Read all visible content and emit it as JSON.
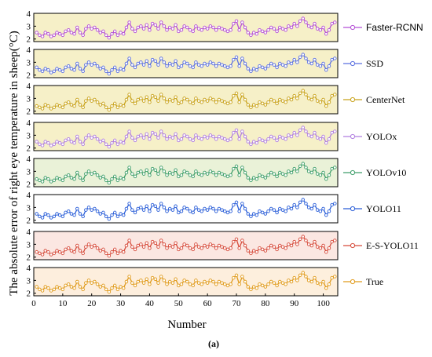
{
  "caption": "(a)",
  "chart_data": {
    "type": "line",
    "layout": "stacked-panels",
    "xlabel": "Number",
    "ylabel": "The absolute error of right eye temperature in sheep(°C)",
    "xlim": [
      0,
      105
    ],
    "ylim": [
      1.8,
      4
    ],
    "x_ticks": [
      0,
      10,
      20,
      30,
      40,
      50,
      60,
      70,
      80,
      90,
      100
    ],
    "y_ticks": [
      2,
      3,
      4
    ],
    "legend_placement": "right of each panel",
    "grid": false,
    "x": [
      1,
      2,
      3,
      4,
      5,
      6,
      7,
      8,
      9,
      10,
      11,
      12,
      13,
      14,
      15,
      16,
      17,
      18,
      19,
      20,
      21,
      22,
      23,
      24,
      25,
      26,
      27,
      28,
      29,
      30,
      31,
      32,
      33,
      34,
      35,
      36,
      37,
      38,
      39,
      40,
      41,
      42,
      43,
      44,
      45,
      46,
      47,
      48,
      49,
      50,
      51,
      52,
      53,
      54,
      55,
      56,
      57,
      58,
      59,
      60,
      61,
      62,
      63,
      64,
      65,
      66,
      67,
      68,
      69,
      70,
      71,
      72,
      73,
      74,
      75,
      76,
      77,
      78,
      79,
      80,
      81,
      82,
      83,
      84,
      85,
      86,
      87,
      88,
      89,
      90,
      91,
      92,
      93,
      94,
      95,
      96,
      97,
      98,
      99,
      100,
      101,
      102,
      103,
      104
    ],
    "series": [
      {
        "name": "Faster-RCNN",
        "color": "#b44fd6",
        "band": "#f6f0c8",
        "values": [
          2.5,
          2.3,
          2.2,
          2.5,
          2.4,
          2.2,
          2.3,
          2.5,
          2.4,
          2.3,
          2.6,
          2.7,
          2.5,
          2.4,
          2.9,
          2.5,
          2.3,
          2.8,
          3.0,
          2.8,
          2.9,
          2.7,
          2.5,
          2.6,
          2.3,
          2.1,
          2.4,
          2.6,
          2.3,
          2.5,
          2.4,
          2.9,
          3.3,
          2.8,
          2.6,
          2.9,
          3.0,
          2.8,
          3.1,
          2.7,
          3.2,
          3.1,
          2.8,
          3.3,
          3.0,
          2.7,
          2.9,
          2.8,
          3.1,
          2.6,
          2.7,
          3.0,
          2.9,
          2.7,
          2.6,
          3.0,
          2.8,
          2.7,
          2.9,
          2.8,
          3.0,
          2.9,
          2.7,
          2.9,
          2.8,
          2.7,
          2.6,
          2.7,
          3.2,
          3.4,
          2.7,
          3.3,
          2.9,
          2.5,
          2.3,
          2.5,
          2.4,
          2.7,
          2.6,
          2.5,
          2.7,
          2.9,
          2.8,
          2.6,
          2.9,
          2.8,
          2.7,
          3.0,
          2.9,
          3.2,
          3.0,
          3.4,
          3.6,
          3.3,
          3.0,
          2.9,
          3.2,
          2.8,
          2.7,
          2.9,
          2.4,
          2.7,
          3.2,
          3.3
        ]
      },
      {
        "name": "SSD",
        "color": "#5a6fe0",
        "band": "#f6f0c8",
        "values": [
          2.6,
          2.4,
          2.3,
          2.5,
          2.4,
          2.2,
          2.3,
          2.5,
          2.4,
          2.3,
          2.6,
          2.7,
          2.5,
          2.4,
          2.9,
          2.5,
          2.3,
          2.8,
          3.0,
          2.8,
          2.9,
          2.7,
          2.5,
          2.6,
          2.3,
          2.1,
          2.4,
          2.6,
          2.3,
          2.5,
          2.4,
          2.9,
          3.3,
          2.8,
          2.6,
          2.9,
          3.0,
          2.8,
          3.1,
          2.7,
          3.2,
          3.1,
          2.8,
          3.3,
          3.0,
          2.7,
          2.9,
          2.8,
          3.1,
          2.6,
          2.7,
          3.0,
          2.9,
          2.7,
          2.6,
          3.0,
          2.8,
          2.7,
          2.9,
          2.8,
          3.0,
          2.9,
          2.7,
          2.9,
          2.8,
          2.7,
          2.6,
          2.7,
          3.2,
          3.4,
          2.7,
          3.3,
          2.9,
          2.5,
          2.3,
          2.5,
          2.4,
          2.7,
          2.6,
          2.5,
          2.7,
          2.9,
          2.8,
          2.6,
          2.9,
          2.8,
          2.7,
          3.0,
          2.9,
          3.2,
          3.0,
          3.4,
          3.6,
          3.3,
          3.0,
          2.9,
          3.2,
          2.8,
          2.7,
          2.9,
          2.4,
          2.7,
          3.2,
          3.3
        ]
      },
      {
        "name": "CenterNet",
        "color": "#c8a21a",
        "band": "#f6f0c8",
        "values": [
          2.4,
          2.3,
          2.2,
          2.5,
          2.4,
          2.2,
          2.3,
          2.5,
          2.4,
          2.3,
          2.6,
          2.7,
          2.5,
          2.4,
          2.9,
          2.5,
          2.3,
          2.8,
          3.0,
          2.8,
          2.9,
          2.7,
          2.5,
          2.6,
          2.3,
          2.1,
          2.4,
          2.6,
          2.3,
          2.5,
          2.4,
          2.9,
          3.3,
          2.8,
          2.6,
          2.9,
          3.0,
          2.8,
          3.1,
          2.7,
          3.2,
          3.1,
          2.8,
          3.3,
          3.0,
          2.7,
          2.9,
          2.8,
          3.1,
          2.6,
          2.7,
          3.0,
          2.9,
          2.7,
          2.6,
          3.0,
          2.8,
          2.7,
          2.9,
          2.8,
          3.0,
          2.9,
          2.7,
          2.9,
          2.8,
          2.7,
          2.6,
          2.7,
          3.2,
          3.4,
          2.7,
          3.3,
          2.9,
          2.5,
          2.3,
          2.5,
          2.4,
          2.7,
          2.6,
          2.5,
          2.7,
          2.9,
          2.8,
          2.6,
          2.9,
          2.8,
          2.7,
          3.0,
          2.9,
          3.2,
          3.0,
          3.4,
          3.6,
          3.3,
          3.0,
          2.9,
          3.2,
          2.8,
          2.7,
          2.9,
          2.4,
          2.7,
          3.2,
          3.3
        ]
      },
      {
        "name": "YOLOx",
        "color": "#b07ee0",
        "band": "#f6f0c8",
        "values": [
          2.5,
          2.3,
          2.2,
          2.5,
          2.4,
          2.2,
          2.3,
          2.5,
          2.4,
          2.3,
          2.6,
          2.7,
          2.5,
          2.4,
          2.9,
          2.5,
          2.3,
          2.8,
          3.0,
          2.8,
          2.9,
          2.7,
          2.5,
          2.6,
          2.3,
          2.1,
          2.4,
          2.6,
          2.3,
          2.5,
          2.4,
          2.9,
          3.3,
          2.8,
          2.6,
          2.9,
          3.0,
          2.8,
          3.1,
          2.7,
          3.2,
          3.1,
          2.8,
          3.3,
          3.0,
          2.7,
          2.9,
          2.8,
          3.1,
          2.6,
          2.7,
          3.0,
          2.9,
          2.7,
          2.6,
          3.0,
          2.8,
          2.7,
          2.9,
          2.8,
          3.0,
          2.9,
          2.7,
          2.9,
          2.8,
          2.7,
          2.6,
          2.7,
          3.2,
          3.4,
          2.7,
          3.3,
          2.9,
          2.5,
          2.3,
          2.5,
          2.4,
          2.7,
          2.6,
          2.5,
          2.7,
          2.9,
          2.8,
          2.6,
          2.9,
          2.8,
          2.7,
          3.0,
          2.9,
          3.2,
          3.0,
          3.4,
          3.6,
          3.3,
          3.0,
          2.9,
          3.2,
          2.8,
          2.7,
          2.9,
          2.4,
          2.7,
          3.2,
          3.3
        ]
      },
      {
        "name": "YOLOv10",
        "color": "#3e9e6a",
        "band": "#eaf2d8",
        "values": [
          2.4,
          2.3,
          2.2,
          2.5,
          2.4,
          2.2,
          2.3,
          2.5,
          2.4,
          2.3,
          2.6,
          2.7,
          2.5,
          2.4,
          2.9,
          2.5,
          2.3,
          2.8,
          3.0,
          2.8,
          2.9,
          2.7,
          2.5,
          2.6,
          2.3,
          2.1,
          2.4,
          2.6,
          2.3,
          2.5,
          2.4,
          2.9,
          3.3,
          2.8,
          2.6,
          2.9,
          3.0,
          2.8,
          3.1,
          2.7,
          3.2,
          3.1,
          2.8,
          3.3,
          3.0,
          2.7,
          2.9,
          2.8,
          3.1,
          2.6,
          2.7,
          3.0,
          2.9,
          2.7,
          2.6,
          3.0,
          2.8,
          2.7,
          2.9,
          2.8,
          3.0,
          2.9,
          2.7,
          2.9,
          2.8,
          2.7,
          2.6,
          2.7,
          3.2,
          3.4,
          2.7,
          3.3,
          2.9,
          2.5,
          2.3,
          2.5,
          2.4,
          2.7,
          2.6,
          2.5,
          2.7,
          2.9,
          2.8,
          2.6,
          2.9,
          2.8,
          2.7,
          3.0,
          2.9,
          3.2,
          3.0,
          3.4,
          3.6,
          3.3,
          3.0,
          2.9,
          3.2,
          2.8,
          2.7,
          2.9,
          2.4,
          2.7,
          3.2,
          3.3
        ]
      },
      {
        "name": "YOLO11",
        "color": "#2a5ed8",
        "band": "#ffffff",
        "values": [
          2.5,
          2.3,
          2.2,
          2.5,
          2.4,
          2.2,
          2.3,
          2.5,
          2.4,
          2.3,
          2.6,
          2.7,
          2.5,
          2.4,
          2.9,
          2.5,
          2.3,
          2.8,
          3.0,
          2.8,
          2.9,
          2.7,
          2.5,
          2.6,
          2.3,
          2.1,
          2.4,
          2.6,
          2.3,
          2.5,
          2.4,
          2.9,
          3.3,
          2.8,
          2.6,
          2.9,
          3.0,
          2.8,
          3.1,
          2.7,
          3.2,
          3.1,
          2.8,
          3.3,
          3.0,
          2.7,
          2.9,
          2.8,
          3.1,
          2.6,
          2.7,
          3.0,
          2.9,
          2.7,
          2.6,
          3.0,
          2.8,
          2.7,
          2.9,
          2.8,
          3.0,
          2.9,
          2.7,
          2.9,
          2.8,
          2.7,
          2.6,
          2.7,
          3.2,
          3.4,
          2.7,
          3.3,
          2.9,
          2.5,
          2.3,
          2.5,
          2.4,
          2.7,
          2.6,
          2.5,
          2.7,
          2.9,
          2.8,
          2.6,
          2.9,
          2.8,
          2.7,
          3.0,
          2.9,
          3.2,
          3.0,
          3.4,
          3.6,
          3.3,
          3.0,
          2.9,
          3.2,
          2.8,
          2.7,
          2.9,
          2.4,
          2.7,
          3.2,
          3.3
        ]
      },
      {
        "name": "E-S-YOLO11",
        "color": "#d64a3a",
        "band": "#fbe7e2",
        "values": [
          2.4,
          2.3,
          2.2,
          2.5,
          2.4,
          2.2,
          2.3,
          2.5,
          2.4,
          2.3,
          2.6,
          2.7,
          2.5,
          2.4,
          2.9,
          2.5,
          2.3,
          2.8,
          3.0,
          2.8,
          2.9,
          2.7,
          2.5,
          2.6,
          2.3,
          2.1,
          2.4,
          2.6,
          2.3,
          2.5,
          2.4,
          2.9,
          3.3,
          2.8,
          2.6,
          2.9,
          3.0,
          2.8,
          3.1,
          2.7,
          3.2,
          3.1,
          2.8,
          3.3,
          3.0,
          2.7,
          2.9,
          2.8,
          3.1,
          2.6,
          2.7,
          3.0,
          2.9,
          2.7,
          2.6,
          3.0,
          2.8,
          2.7,
          2.9,
          2.8,
          3.0,
          2.9,
          2.7,
          2.9,
          2.8,
          2.7,
          2.6,
          2.7,
          3.2,
          3.4,
          2.7,
          3.3,
          2.9,
          2.5,
          2.3,
          2.5,
          2.4,
          2.7,
          2.6,
          2.5,
          2.7,
          2.9,
          2.8,
          2.6,
          2.9,
          2.8,
          2.7,
          3.0,
          2.9,
          3.2,
          3.0,
          3.4,
          3.6,
          3.3,
          3.0,
          2.9,
          3.2,
          2.8,
          2.7,
          2.9,
          2.4,
          2.7,
          3.2,
          3.3
        ]
      },
      {
        "name": "True",
        "color": "#e09a1a",
        "band": "#fdeedd",
        "values": [
          2.5,
          2.3,
          2.2,
          2.5,
          2.4,
          2.2,
          2.3,
          2.5,
          2.4,
          2.3,
          2.6,
          2.7,
          2.5,
          2.4,
          2.9,
          2.5,
          2.3,
          2.8,
          3.0,
          2.8,
          2.9,
          2.7,
          2.5,
          2.6,
          2.3,
          2.1,
          2.4,
          2.6,
          2.3,
          2.5,
          2.4,
          2.9,
          3.3,
          2.8,
          2.6,
          2.9,
          3.0,
          2.8,
          3.1,
          2.7,
          3.2,
          3.1,
          2.8,
          3.3,
          3.0,
          2.7,
          2.9,
          2.8,
          3.1,
          2.6,
          2.7,
          3.0,
          2.9,
          2.7,
          2.6,
          3.0,
          2.8,
          2.7,
          2.9,
          2.8,
          3.0,
          2.9,
          2.7,
          2.9,
          2.8,
          2.7,
          2.6,
          2.7,
          3.2,
          3.4,
          2.7,
          3.3,
          2.9,
          2.5,
          2.3,
          2.5,
          2.4,
          2.7,
          2.6,
          2.5,
          2.7,
          2.9,
          2.8,
          2.6,
          2.9,
          2.8,
          2.7,
          3.0,
          2.9,
          3.2,
          3.0,
          3.4,
          3.6,
          3.3,
          3.0,
          2.9,
          3.2,
          2.8,
          2.7,
          2.9,
          2.4,
          2.7,
          3.2,
          3.3
        ]
      }
    ]
  }
}
